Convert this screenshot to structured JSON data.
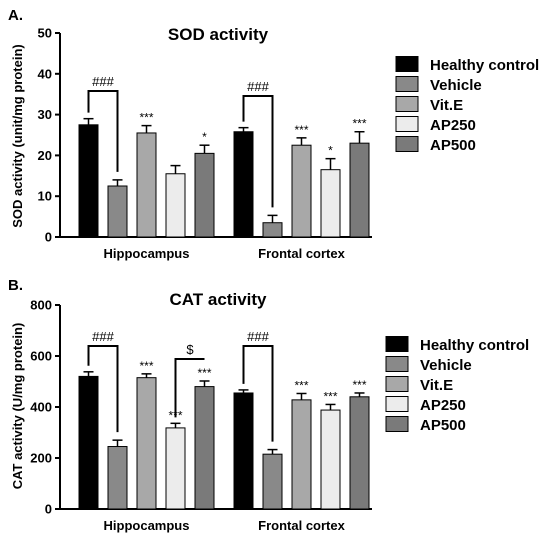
{
  "colors": {
    "series": [
      "#000000",
      "#898989",
      "#a8a8a8",
      "#ececec",
      "#7a7a7a"
    ],
    "axis": "#000000"
  },
  "chart_data": [
    {
      "type": "bar",
      "panel": "A.",
      "title": "SOD activity",
      "ylabel": "SOD activity (unit/mg protein)",
      "xlabel": "",
      "ylim": [
        0,
        50
      ],
      "yticks": [
        0,
        10,
        20,
        30,
        40,
        50
      ],
      "categories": [
        "Hippocampus",
        "Frontal cortex"
      ],
      "legend_position": "right",
      "grid": false,
      "series": [
        {
          "name": "Healthy control",
          "values": [
            27.5,
            25.8
          ],
          "errors": [
            1.5,
            1.0
          ],
          "annotations": [
            "",
            ""
          ]
        },
        {
          "name": "Vehicle",
          "values": [
            12.5,
            3.5
          ],
          "errors": [
            1.5,
            1.8
          ],
          "annotations": [
            "",
            ""
          ]
        },
        {
          "name": "Vit.E",
          "values": [
            25.5,
            22.5
          ],
          "errors": [
            1.8,
            1.8
          ],
          "annotations": [
            "***",
            "***"
          ]
        },
        {
          "name": "AP250",
          "values": [
            15.5,
            16.5
          ],
          "errors": [
            2.0,
            2.7
          ],
          "annotations": [
            "",
            "*"
          ]
        },
        {
          "name": "AP500",
          "values": [
            20.5,
            23.0
          ],
          "errors": [
            2.0,
            2.8
          ],
          "annotations": [
            "*",
            "***"
          ]
        }
      ],
      "brackets": [
        {
          "category": 0,
          "from": 0,
          "to": 1,
          "label": "###"
        },
        {
          "category": 1,
          "from": 0,
          "to": 1,
          "label": "###"
        }
      ]
    },
    {
      "type": "bar",
      "panel": "B.",
      "title": "CAT activity",
      "ylabel": "CAT activity (U/mg protein)",
      "xlabel": "",
      "ylim": [
        0,
        800
      ],
      "yticks": [
        0,
        200,
        400,
        600,
        800
      ],
      "categories": [
        "Hippocampus",
        "Frontal cortex"
      ],
      "legend_position": "right",
      "grid": false,
      "series": [
        {
          "name": "Healthy control",
          "values": [
            520,
            455
          ],
          "errors": [
            18,
            12
          ],
          "annotations": [
            "",
            ""
          ]
        },
        {
          "name": "Vehicle",
          "values": [
            245,
            215
          ],
          "errors": [
            25,
            18
          ],
          "annotations": [
            "",
            ""
          ]
        },
        {
          "name": "Vit.E",
          "values": [
            515,
            428
          ],
          "errors": [
            15,
            25
          ],
          "annotations": [
            "***",
            "***"
          ]
        },
        {
          "name": "AP250",
          "values": [
            318,
            388
          ],
          "errors": [
            18,
            22
          ],
          "annotations": [
            "***",
            "***"
          ]
        },
        {
          "name": "AP500",
          "values": [
            480,
            440
          ],
          "errors": [
            22,
            15
          ],
          "annotations": [
            "***",
            "***"
          ]
        }
      ],
      "brackets": [
        {
          "category": 0,
          "from": 0,
          "to": 1,
          "label": "###"
        },
        {
          "category": 0,
          "from": 3,
          "to": 4,
          "label": "$"
        },
        {
          "category": 1,
          "from": 0,
          "to": 1,
          "label": "###"
        }
      ]
    }
  ]
}
